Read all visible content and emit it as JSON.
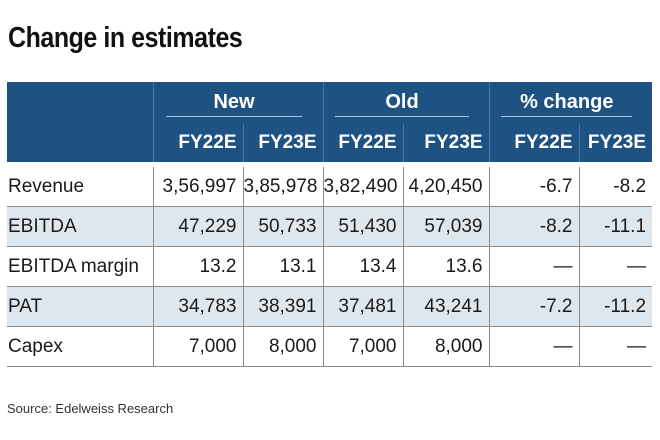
{
  "title": "Change in estimates",
  "header": {
    "groups": [
      "New",
      "Old",
      "% change"
    ],
    "years": [
      "FY22E",
      "FY23E",
      "FY22E",
      "FY23E",
      "FY22E",
      "FY23E"
    ]
  },
  "rows": [
    {
      "label": "Revenue",
      "values": [
        "3,56,997",
        "3,85,978",
        "3,82,490",
        "4,20,450",
        "-6.7",
        "-8.2"
      ]
    },
    {
      "label": "EBITDA",
      "values": [
        "47,229",
        "50,733",
        "51,430",
        "57,039",
        "-8.2",
        "-11.1"
      ]
    },
    {
      "label": "EBITDA margin",
      "values": [
        "13.2",
        "13.1",
        "13.4",
        "13.6",
        "—",
        "—"
      ]
    },
    {
      "label": "PAT",
      "values": [
        "34,783",
        "38,391",
        "37,481",
        "43,241",
        "-7.2",
        "-11.2"
      ]
    },
    {
      "label": "Capex",
      "values": [
        "7,000",
        "8,000",
        "7,000",
        "8,000",
        "—",
        "—"
      ]
    }
  ],
  "source": "Source: Edelweiss Research",
  "colors": {
    "header_bg": "#1e5282",
    "shaded_row": "#dfe7ee"
  }
}
